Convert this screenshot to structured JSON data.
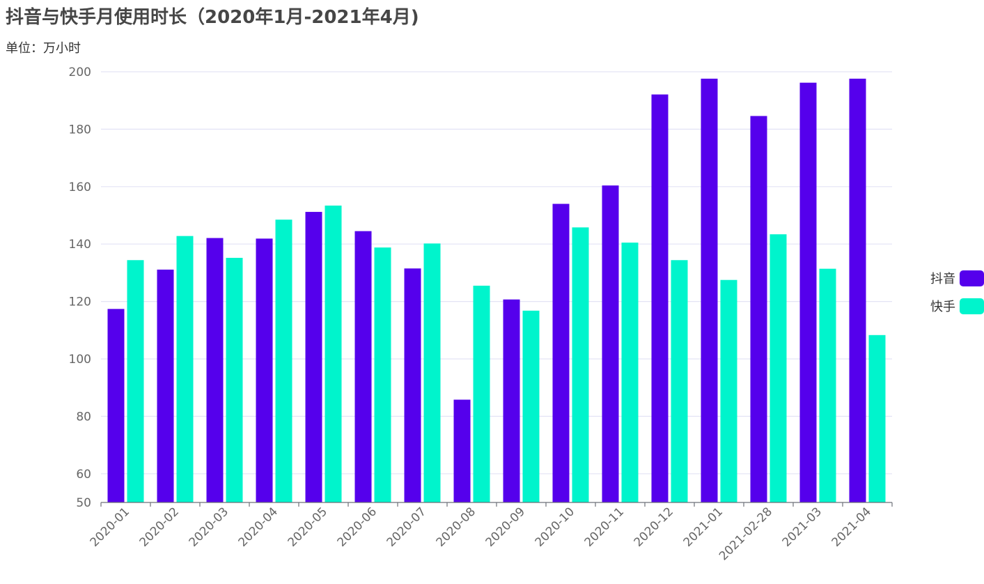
{
  "chart_data": {
    "type": "bar",
    "title": "抖音与快手月使用时长（2020年1月-2021年4月)",
    "subtitle": "单位：万小时",
    "categories": [
      "2020-01",
      "2020-02",
      "2020-03",
      "2020-04",
      "2020-05",
      "2020-06",
      "2020-07",
      "2020-08",
      "2020-09",
      "2020-10",
      "2020-11",
      "2020-12",
      "2021-01",
      "2021-02-28",
      "2021-03",
      "2021-04"
    ],
    "series": [
      {
        "name": "抖音",
        "color": "#5500ec",
        "values": [
          117.4,
          131.1,
          142.1,
          141.9,
          151.2,
          144.5,
          131.5,
          85.8,
          120.7,
          154.0,
          160.4,
          192.1,
          197.6,
          184.6,
          196.2,
          197.6
        ]
      },
      {
        "name": "快手",
        "color": "#00f4cc",
        "values": [
          134.4,
          142.8,
          135.2,
          148.5,
          153.4,
          138.8,
          140.2,
          125.5,
          116.8,
          145.8,
          140.5,
          134.4,
          127.5,
          143.4,
          131.4,
          108.3
        ]
      }
    ],
    "yticks": [
      50,
      60,
      80,
      100,
      120,
      140,
      160,
      180,
      200
    ],
    "ylim": [
      50,
      200
    ],
    "grid": true,
    "legend_position": "right"
  }
}
